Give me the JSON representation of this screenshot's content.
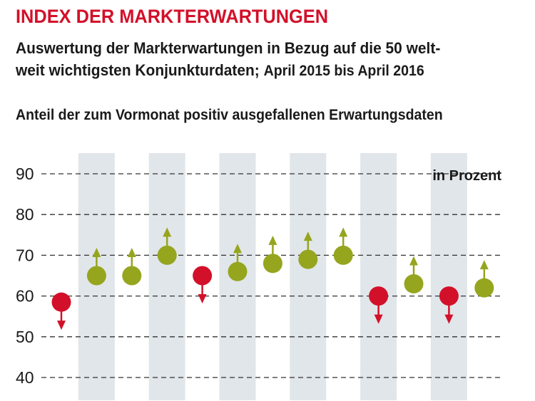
{
  "header": {
    "title": "INDEX DER MARKTERWARTUNGEN",
    "subtitle_line1": "Auswertung der Markterwartungen in Bezug auf die 50 welt-",
    "subtitle_line2a": "weit wichtigsten Konjunkturdaten;",
    "subtitle_line2b": "April 2015 bis April 2016",
    "chart_title": "Anteil der zum Vormonat positiv ausgefallenen Erwartungsdaten"
  },
  "colors": {
    "title": "#d3102a",
    "up": "#96a51e",
    "down": "#d3102a",
    "band": "#e1e6ea",
    "grid": "#333333"
  },
  "chart_data": {
    "type": "scatter",
    "unit_label": "in Prozent",
    "ylim": [
      40,
      90
    ],
    "yticks": [
      40,
      50,
      60,
      70,
      80,
      90
    ],
    "grid": "dashed horizontal",
    "alternating_column_bands": true,
    "points": [
      {
        "value": 58.5,
        "direction": "down"
      },
      {
        "value": 65,
        "direction": "up"
      },
      {
        "value": 65,
        "direction": "up"
      },
      {
        "value": 70,
        "direction": "up"
      },
      {
        "value": 65,
        "direction": "down"
      },
      {
        "value": 66,
        "direction": "up"
      },
      {
        "value": 68,
        "direction": "up"
      },
      {
        "value": 69,
        "direction": "up"
      },
      {
        "value": 70,
        "direction": "up"
      },
      {
        "value": 60,
        "direction": "down"
      },
      {
        "value": 63,
        "direction": "up"
      },
      {
        "value": 60,
        "direction": "down"
      },
      {
        "value": 62,
        "direction": "up"
      }
    ]
  }
}
